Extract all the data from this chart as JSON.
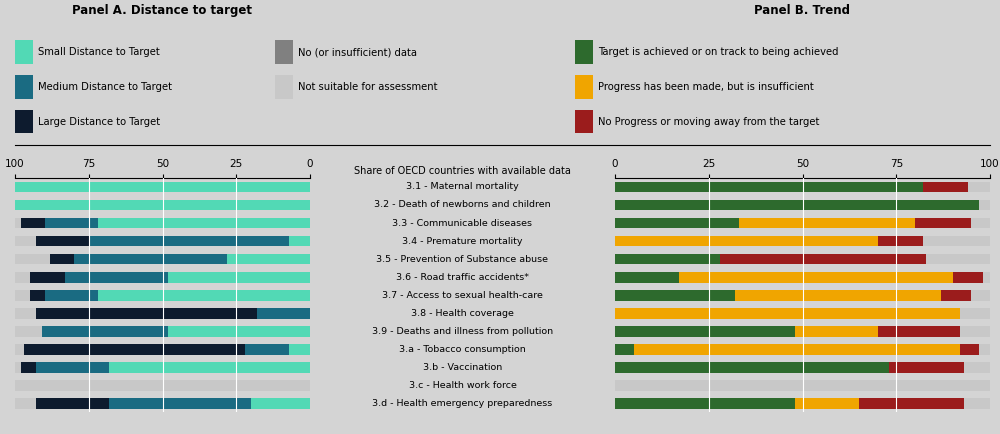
{
  "categories": [
    "3.1 - Maternal mortality",
    "3.2 - Death of newborns and children",
    "3.3 - Communicable diseases",
    "3.4 - Premature mortality",
    "3.5 - Prevention of Substance abuse",
    "3.6 - Road traffic accidents*",
    "3.7 - Access to sexual health-care",
    "3.8 - Health coverage",
    "3.9 - Deaths and illness from pollution",
    "3.a - Tobacco consumption",
    "3.b - Vaccination",
    "3.c - Health work force",
    "3.d - Health emergency preparedness"
  ],
  "panel_a": {
    "small": [
      100,
      100,
      72,
      7,
      28,
      48,
      72,
      0,
      48,
      7,
      68,
      0,
      20
    ],
    "medium": [
      0,
      0,
      18,
      68,
      52,
      35,
      18,
      18,
      43,
      15,
      25,
      0,
      48
    ],
    "large": [
      0,
      0,
      8,
      18,
      8,
      12,
      5,
      75,
      0,
      75,
      5,
      0,
      25
    ],
    "no_data": [
      0,
      0,
      0,
      0,
      0,
      0,
      0,
      0,
      0,
      0,
      0,
      0,
      0
    ],
    "not_suitable": [
      0,
      0,
      2,
      7,
      12,
      5,
      5,
      7,
      9,
      3,
      2,
      100,
      7
    ]
  },
  "panel_b": {
    "on_track": [
      82,
      97,
      33,
      0,
      28,
      17,
      32,
      0,
      48,
      5,
      73,
      0,
      48
    ],
    "insufficient": [
      0,
      0,
      47,
      70,
      0,
      73,
      55,
      92,
      22,
      87,
      0,
      0,
      17
    ],
    "no_progress": [
      12,
      0,
      15,
      12,
      55,
      8,
      8,
      0,
      22,
      5,
      20,
      0,
      28
    ],
    "not_suitable": [
      6,
      3,
      5,
      18,
      17,
      2,
      5,
      8,
      8,
      3,
      7,
      100,
      7
    ]
  },
  "colors": {
    "small": "#52d9b5",
    "medium": "#1a6b82",
    "large": "#0d1b2e",
    "no_data": "#808080",
    "not_suitable": "#c8c8c8",
    "on_track": "#2d6a2d",
    "insufficient": "#f0a500",
    "no_progress": "#9b1c1c"
  },
  "panel_a_title": "Panel A. Distance to target",
  "panel_b_title": "Panel B. Trend",
  "xlabel_center": "Share of OECD countries with available data",
  "bg_color": "#d4d4d4",
  "legend_a_col1": [
    {
      "label": "Small Distance to Target",
      "color": "#52d9b5"
    },
    {
      "label": "Medium Distance to Target",
      "color": "#1a6b82"
    },
    {
      "label": "Large Distance to Target",
      "color": "#0d1b2e"
    }
  ],
  "legend_a_col2": [
    {
      "label": "No (or insufficient) data",
      "color": "#808080"
    },
    {
      "label": "Not suitable for assessment",
      "color": "#c8c8c8"
    }
  ],
  "legend_b": [
    {
      "label": "Target is achieved or on track to being achieved",
      "color": "#2d6a2d"
    },
    {
      "label": "Progress has been made, but is insufficient",
      "color": "#f0a500"
    },
    {
      "label": "No Progress or moving away from the target",
      "color": "#9b1c1c"
    }
  ]
}
